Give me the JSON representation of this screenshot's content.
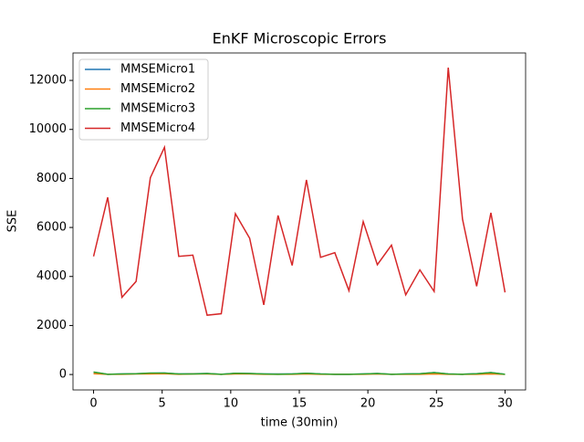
{
  "chart_data": {
    "type": "line",
    "title": "EnKF Microscopic Errors",
    "xlabel": "time (30min)",
    "ylabel": "SSE",
    "x": [
      0,
      1.03,
      2.07,
      3.1,
      4.14,
      5.17,
      6.21,
      7.24,
      8.28,
      9.31,
      10.34,
      11.38,
      12.41,
      13.45,
      14.48,
      15.52,
      16.55,
      17.59,
      18.62,
      19.66,
      20.69,
      21.72,
      22.76,
      23.79,
      24.83,
      25.86,
      26.9,
      27.93,
      28.97,
      30
    ],
    "series": [
      {
        "name": "MMSEMicro1",
        "color": "#1f77b4",
        "values": [
          90,
          10,
          20,
          30,
          50,
          60,
          20,
          30,
          40,
          10,
          50,
          40,
          20,
          20,
          20,
          50,
          20,
          10,
          10,
          20,
          40,
          10,
          20,
          30,
          80,
          20,
          10,
          30,
          80,
          10
        ]
      },
      {
        "name": "MMSEMicro2",
        "color": "#ff7f0e",
        "values": [
          30,
          10,
          10,
          20,
          20,
          30,
          10,
          20,
          20,
          10,
          20,
          20,
          10,
          10,
          10,
          20,
          10,
          10,
          10,
          10,
          20,
          10,
          10,
          10,
          20,
          10,
          10,
          10,
          20,
          10
        ]
      },
      {
        "name": "MMSEMicro3",
        "color": "#2ca02c",
        "values": [
          100,
          10,
          20,
          30,
          60,
          60,
          20,
          20,
          40,
          10,
          50,
          40,
          20,
          10,
          20,
          50,
          20,
          10,
          10,
          20,
          40,
          10,
          20,
          30,
          80,
          20,
          10,
          30,
          80,
          10
        ]
      },
      {
        "name": "MMSEMicro4",
        "color": "#d62728",
        "values": [
          4820,
          7230,
          3150,
          3800,
          8030,
          9270,
          4820,
          4870,
          2420,
          2480,
          6560,
          5560,
          2840,
          6490,
          4450,
          7940,
          4780,
          4970,
          3420,
          6240,
          4480,
          5280,
          3250,
          4270,
          3390,
          12520,
          6340,
          3600,
          6600,
          3350
        ]
      }
    ],
    "xlim": [
      -1.5,
      31.5
    ],
    "xticks": [
      0,
      5,
      10,
      15,
      20,
      25,
      30
    ],
    "ylim": [
      -630,
      13120
    ],
    "yticks": [
      0,
      2000,
      4000,
      6000,
      8000,
      10000,
      12000
    ],
    "legend": "upper left"
  }
}
